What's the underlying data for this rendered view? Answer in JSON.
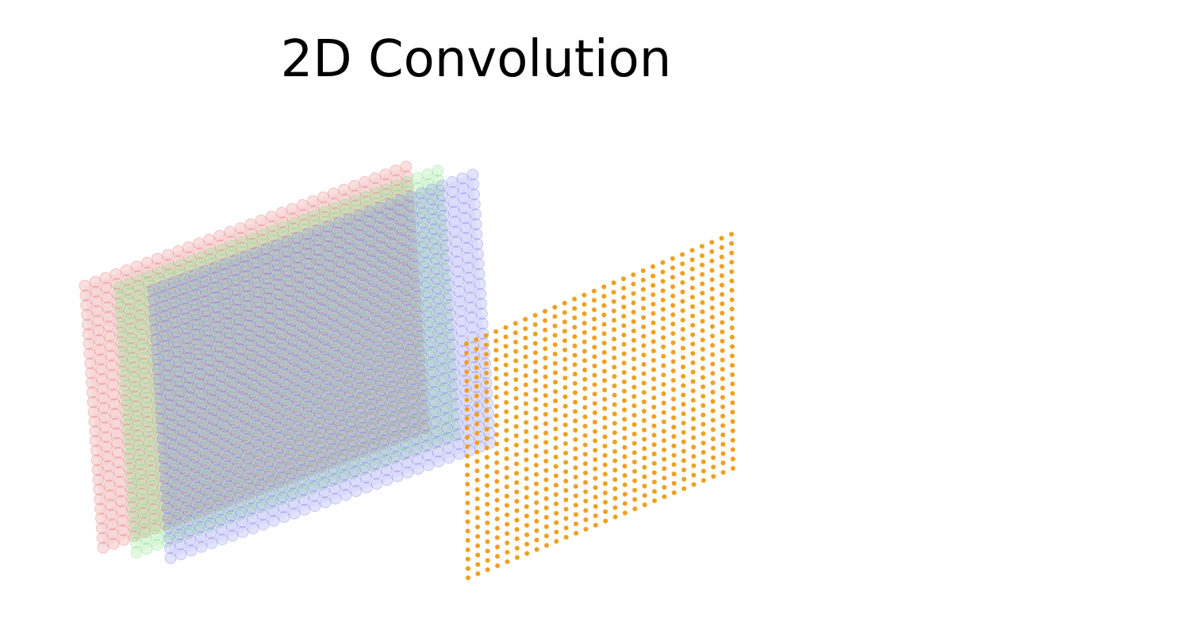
{
  "title": "2D Convolution",
  "input_layers": [
    {
      "channel": "red",
      "color": "#e88080",
      "opacity": 0.25
    },
    {
      "channel": "green",
      "color": "#7fe07f",
      "opacity": 0.22
    },
    {
      "channel": "blue",
      "color": "#8080ee",
      "opacity": 0.22
    }
  ],
  "output_layer": {
    "color": "#f0a020"
  },
  "input_grid": {
    "cols": 32,
    "rows": 28
  },
  "output_grid": {
    "cols": 28,
    "rows": 26
  }
}
